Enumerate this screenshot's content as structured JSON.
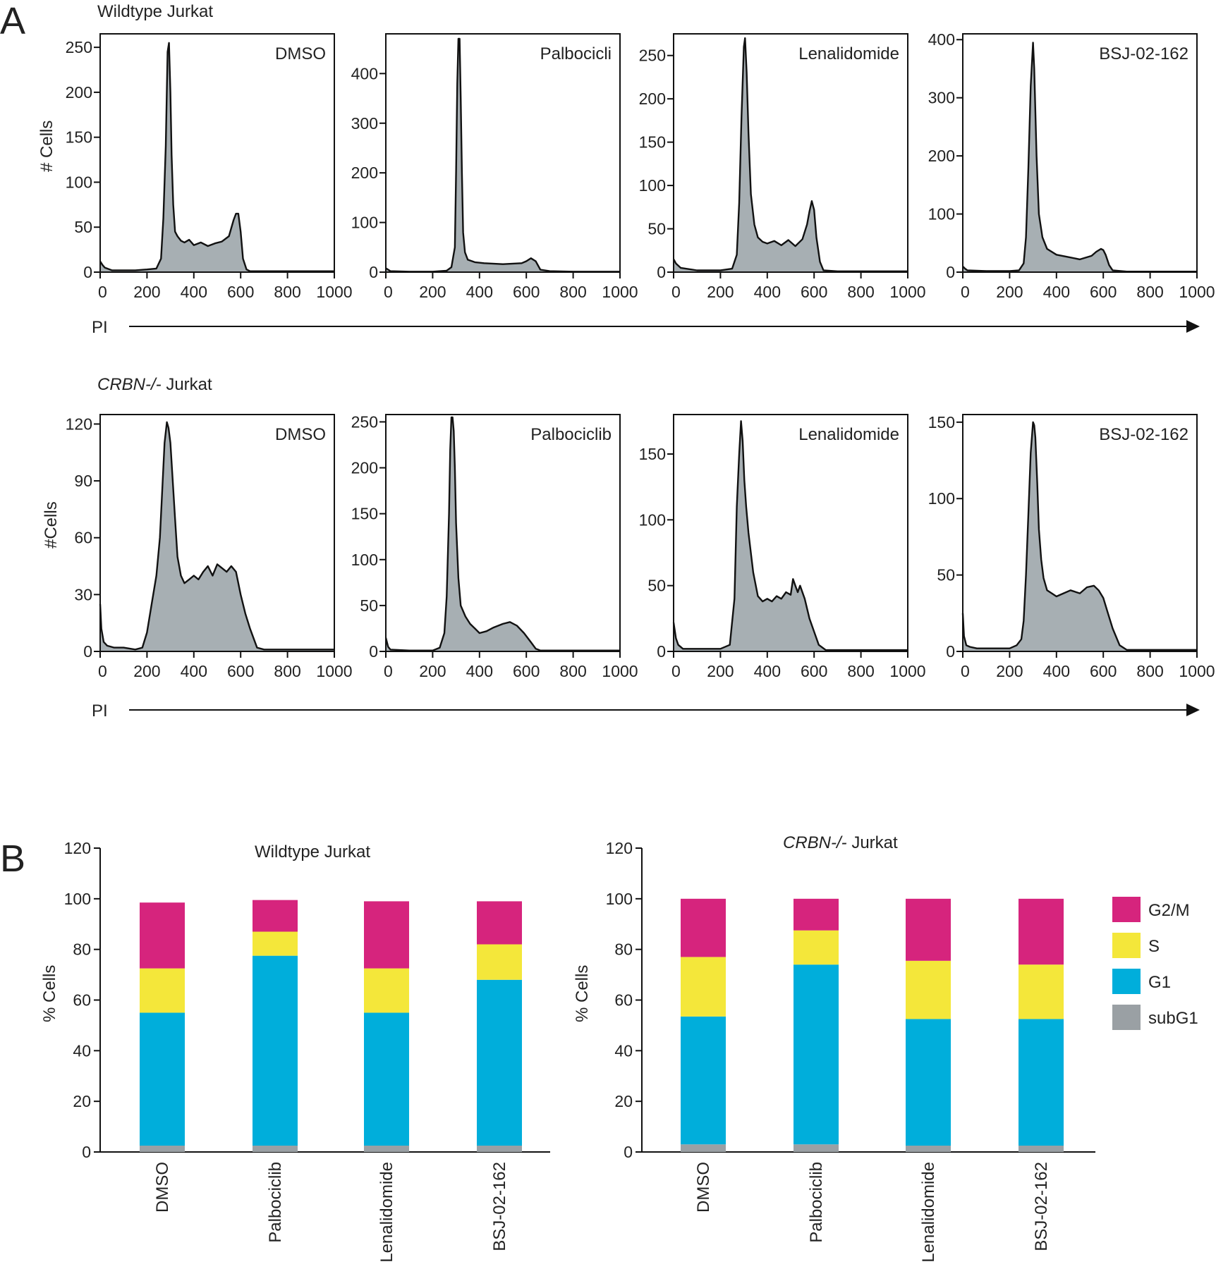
{
  "figure": {
    "panel_a_letter": "A",
    "panel_b_letter": "B",
    "row1_title": "Wildtype Jurkat",
    "row2_title_italic": "CRBN-/-",
    "row2_title_rest": " Jurkat",
    "x_axis_label": "PI",
    "row1_y_label": "# Cells",
    "row2_y_label": "#Cells",
    "b_y_label": "% Cells",
    "b_left_title": "Wildtype Jurkat",
    "b_right_title_italic": "CRBN-/-",
    "b_right_title_rest": " Jurkat"
  },
  "chart_data": [
    {
      "id": "A1-DMSO",
      "type": "area",
      "title": "DMSO",
      "row": 1,
      "col": 0,
      "xlim": [
        0,
        1000
      ],
      "xticks": [
        0,
        200,
        400,
        600,
        800,
        1000
      ],
      "ylim": [
        0,
        265
      ],
      "yticks": [
        0,
        50,
        100,
        150,
        200,
        250
      ],
      "x": [
        0,
        10,
        20,
        50,
        100,
        150,
        200,
        240,
        260,
        270,
        280,
        288,
        294,
        300,
        305,
        312,
        320,
        330,
        345,
        360,
        380,
        400,
        430,
        460,
        490,
        520,
        550,
        570,
        580,
        590,
        600,
        610,
        625,
        640,
        700,
        800,
        900,
        1000
      ],
      "y": [
        12,
        8,
        5,
        2,
        2,
        2,
        3,
        4,
        15,
        60,
        140,
        245,
        255,
        200,
        130,
        75,
        45,
        40,
        35,
        33,
        36,
        30,
        33,
        29,
        32,
        34,
        40,
        58,
        65,
        65,
        45,
        15,
        3,
        1,
        1,
        1,
        1,
        1
      ]
    },
    {
      "id": "A1-Palbociclib",
      "type": "area",
      "title": "Palbocicli",
      "row": 1,
      "col": 1,
      "xlim": [
        0,
        1000
      ],
      "xticks": [
        0,
        200,
        400,
        600,
        800,
        1000
      ],
      "ylim": [
        0,
        480
      ],
      "yticks": [
        0,
        100,
        200,
        300,
        400
      ],
      "x": [
        0,
        20,
        100,
        200,
        260,
        280,
        295,
        300,
        305,
        310,
        315,
        320,
        325,
        330,
        338,
        350,
        380,
        420,
        500,
        580,
        600,
        620,
        640,
        660,
        700,
        800,
        900,
        1000
      ],
      "y": [
        8,
        2,
        1,
        1,
        3,
        10,
        50,
        200,
        380,
        470,
        470,
        350,
        200,
        80,
        40,
        25,
        20,
        18,
        16,
        18,
        22,
        28,
        22,
        5,
        2,
        1,
        1,
        1
      ]
    },
    {
      "id": "A1-Lenalidomide",
      "type": "area",
      "title": "Lenalidomide",
      "row": 1,
      "col": 2,
      "xlim": [
        0,
        1000
      ],
      "xticks": [
        0,
        200,
        400,
        600,
        800,
        1000
      ],
      "ylim": [
        0,
        275
      ],
      "yticks": [
        0,
        50,
        100,
        150,
        200,
        250
      ],
      "x": [
        0,
        10,
        30,
        100,
        200,
        250,
        270,
        280,
        290,
        300,
        305,
        312,
        320,
        330,
        345,
        360,
        380,
        400,
        430,
        460,
        490,
        520,
        550,
        570,
        580,
        590,
        600,
        610,
        625,
        640,
        700,
        800,
        900,
        1000
      ],
      "y": [
        15,
        10,
        5,
        2,
        2,
        4,
        20,
        80,
        180,
        260,
        270,
        230,
        160,
        90,
        55,
        40,
        35,
        33,
        36,
        31,
        37,
        30,
        38,
        55,
        70,
        82,
        72,
        40,
        12,
        2,
        1,
        1,
        1,
        1
      ]
    },
    {
      "id": "A1-BSJ-02-162",
      "type": "area",
      "title": "BSJ-02-162",
      "row": 1,
      "col": 3,
      "xlim": [
        0,
        1000
      ],
      "xticks": [
        0,
        200,
        400,
        600,
        800,
        1000
      ],
      "ylim": [
        0,
        410
      ],
      "yticks": [
        0,
        100,
        200,
        300,
        400
      ],
      "x": [
        0,
        10,
        20,
        100,
        200,
        240,
        260,
        270,
        280,
        290,
        300,
        305,
        315,
        325,
        340,
        360,
        400,
        450,
        500,
        550,
        570,
        590,
        600,
        610,
        625,
        640,
        700,
        800,
        900,
        1000
      ],
      "y": [
        10,
        6,
        3,
        2,
        2,
        3,
        15,
        60,
        180,
        320,
        395,
        350,
        200,
        100,
        60,
        40,
        30,
        26,
        22,
        28,
        35,
        40,
        38,
        30,
        12,
        3,
        1,
        1,
        1,
        1
      ]
    },
    {
      "id": "A2-DMSO",
      "type": "area",
      "title": "DMSO",
      "row": 2,
      "col": 0,
      "xlim": [
        0,
        1000
      ],
      "xticks": [
        0,
        200,
        400,
        600,
        800,
        1000
      ],
      "ylim": [
        0,
        125
      ],
      "yticks": [
        0,
        30,
        60,
        90,
        120
      ],
      "x": [
        0,
        5,
        15,
        30,
        60,
        100,
        150,
        180,
        200,
        220,
        240,
        255,
        265,
        275,
        285,
        292,
        300,
        310,
        320,
        330,
        345,
        360,
        380,
        400,
        420,
        440,
        460,
        480,
        500,
        520,
        540,
        560,
        580,
        600,
        620,
        640,
        670,
        700,
        800,
        900,
        1000
      ],
      "y": [
        25,
        12,
        5,
        3,
        2,
        2,
        1,
        2,
        10,
        25,
        40,
        60,
        85,
        110,
        121,
        118,
        110,
        90,
        70,
        50,
        40,
        36,
        38,
        40,
        38,
        42,
        45,
        40,
        46,
        44,
        42,
        45,
        42,
        30,
        20,
        12,
        2,
        1,
        1,
        1,
        1
      ]
    },
    {
      "id": "A2-Palbociclib",
      "type": "area",
      "title": "Palbociclib",
      "row": 2,
      "col": 1,
      "xlim": [
        0,
        1000
      ],
      "xticks": [
        0,
        200,
        400,
        600,
        800,
        1000
      ],
      "ylim": [
        0,
        258
      ],
      "yticks": [
        0,
        50,
        100,
        150,
        200,
        250
      ],
      "x": [
        0,
        10,
        20,
        100,
        200,
        230,
        250,
        260,
        270,
        275,
        280,
        285,
        290,
        295,
        300,
        310,
        320,
        340,
        360,
        380,
        400,
        430,
        460,
        500,
        530,
        560,
        590,
        620,
        640,
        660,
        700,
        800,
        900,
        1000
      ],
      "y": [
        15,
        5,
        2,
        1,
        1,
        4,
        20,
        60,
        150,
        220,
        255,
        255,
        240,
        200,
        140,
        80,
        50,
        38,
        30,
        25,
        20,
        22,
        26,
        30,
        32,
        28,
        20,
        10,
        3,
        1,
        1,
        1,
        1,
        1
      ]
    },
    {
      "id": "A2-Lenalidomide",
      "type": "area",
      "title": "Lenalidomide",
      "row": 2,
      "col": 2,
      "xlim": [
        0,
        1000
      ],
      "xticks": [
        0,
        200,
        400,
        600,
        800,
        1000
      ],
      "ylim": [
        0,
        180
      ],
      "yticks": [
        0,
        50,
        100,
        150
      ],
      "x": [
        0,
        10,
        20,
        40,
        100,
        200,
        240,
        260,
        270,
        280,
        288,
        295,
        302,
        310,
        320,
        340,
        360,
        380,
        400,
        420,
        440,
        460,
        480,
        500,
        510,
        520,
        530,
        540,
        560,
        580,
        600,
        620,
        650,
        700,
        800,
        900,
        1000
      ],
      "y": [
        22,
        10,
        5,
        2,
        2,
        2,
        5,
        40,
        110,
        150,
        175,
        160,
        130,
        110,
        90,
        60,
        42,
        38,
        40,
        38,
        42,
        40,
        45,
        43,
        55,
        50,
        45,
        50,
        40,
        25,
        15,
        5,
        1,
        1,
        1,
        1,
        1
      ]
    },
    {
      "id": "A2-BSJ-02-162",
      "type": "area",
      "title": "BSJ-02-162",
      "row": 2,
      "col": 3,
      "xlim": [
        0,
        1000
      ],
      "xticks": [
        0,
        200,
        400,
        600,
        800,
        1000
      ],
      "ylim": [
        0,
        155
      ],
      "yticks": [
        0,
        50,
        100,
        150
      ],
      "x": [
        0,
        5,
        15,
        30,
        60,
        100,
        150,
        200,
        230,
        250,
        260,
        270,
        280,
        290,
        300,
        305,
        310,
        318,
        325,
        335,
        345,
        360,
        380,
        400,
        430,
        460,
        500,
        530,
        560,
        580,
        600,
        620,
        640,
        670,
        700,
        800,
        900,
        1000
      ],
      "y": [
        25,
        10,
        4,
        3,
        2,
        2,
        2,
        2,
        4,
        8,
        20,
        50,
        90,
        130,
        150,
        148,
        140,
        110,
        80,
        60,
        48,
        40,
        38,
        36,
        38,
        40,
        38,
        42,
        43,
        40,
        35,
        25,
        15,
        4,
        1,
        1,
        1,
        1
      ]
    },
    {
      "id": "B-wildtype",
      "type": "bar",
      "stacked": true,
      "title": "Wildtype Jurkat",
      "categories": [
        "DMSO",
        "Palbociclib",
        "Lenalidomide",
        "BSJ-02-162"
      ],
      "ylabel": "% Cells",
      "ylim": [
        0,
        120
      ],
      "yticks": [
        0,
        20,
        40,
        60,
        80,
        100,
        120
      ],
      "series": [
        {
          "name": "subG1",
          "color": "#9aa0a4",
          "values": [
            2.5,
            2.5,
            2.5,
            2.5
          ]
        },
        {
          "name": "G1",
          "color": "#00aedb",
          "values": [
            52.5,
            75,
            52.5,
            65.5
          ]
        },
        {
          "name": "S",
          "color": "#f4e73a",
          "values": [
            17.5,
            9.5,
            17.5,
            14
          ]
        },
        {
          "name": "G2/M",
          "color": "#d6247d",
          "values": [
            26,
            12.5,
            26.5,
            17
          ]
        }
      ]
    },
    {
      "id": "B-crbn",
      "type": "bar",
      "stacked": true,
      "title": "CRBN-/- Jurkat",
      "categories": [
        "DMSO",
        "Palbociclib",
        "Lenalidomide",
        "BSJ-02-162"
      ],
      "ylabel": "% Cells",
      "ylim": [
        0,
        120
      ],
      "yticks": [
        0,
        20,
        40,
        60,
        80,
        100,
        120
      ],
      "legend": [
        "G2/M",
        "S",
        "G1",
        "subG1"
      ],
      "series": [
        {
          "name": "subG1",
          "color": "#9aa0a4",
          "values": [
            3,
            3,
            2.5,
            2.5
          ]
        },
        {
          "name": "G1",
          "color": "#00aedb",
          "values": [
            50.5,
            71,
            50,
            50
          ]
        },
        {
          "name": "S",
          "color": "#f4e73a",
          "values": [
            23.5,
            13.5,
            23,
            21.5
          ]
        },
        {
          "name": "G2/M",
          "color": "#d6247d",
          "values": [
            23,
            12.5,
            24.5,
            26
          ]
        }
      ]
    }
  ]
}
